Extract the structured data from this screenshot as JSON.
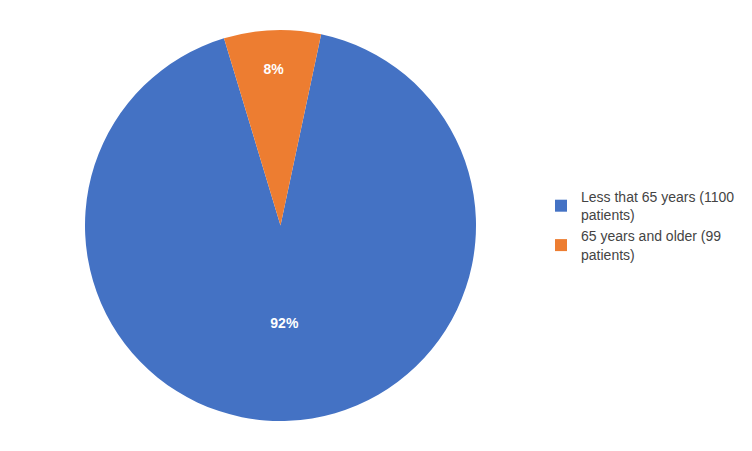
{
  "chart_data": {
    "type": "pie",
    "categories": [
      "Less that 65 years (1100\npatients)",
      "65 years and older (99\npatients)"
    ],
    "values": [
      92,
      8
    ],
    "value_labels": [
      "92%",
      "8%"
    ],
    "colors": [
      "#4472C4",
      "#ED7D31"
    ],
    "data_labels": true,
    "legend": "right"
  }
}
